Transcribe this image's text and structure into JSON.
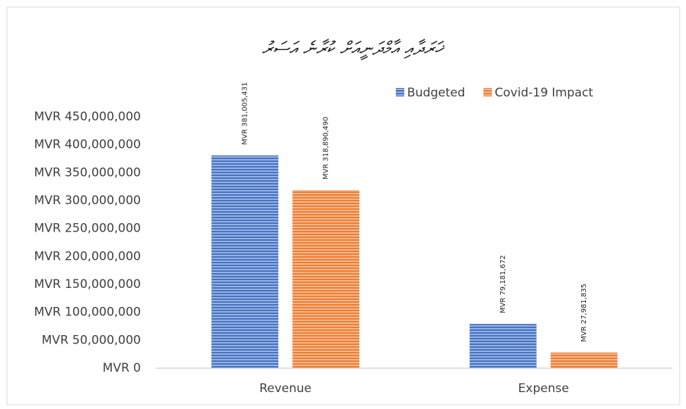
{
  "chart_data": {
    "type": "bar",
    "title": "ޚަރަދާއި އާމްދަނީއަށް ކުރާނެ އަސަރު",
    "categories": [
      "Revenue",
      "Expense"
    ],
    "series": [
      {
        "name": "Budgeted",
        "color": "#4472c4",
        "values": [
          381005431,
          79181672
        ],
        "value_labels": [
          "MVR 381,005,431",
          "MVR 79,181,672"
        ]
      },
      {
        "name": "Covid-19 Impact",
        "color": "#ed7d31",
        "values": [
          318890490,
          27981835
        ],
        "value_labels": [
          "MVR 318,890,490",
          "MVR 27,981,835"
        ]
      }
    ],
    "ylim": [
      0,
      450000000
    ],
    "yticks": [
      {
        "value": 0,
        "label": "MVR 0"
      },
      {
        "value": 50000000,
        "label": "MVR 50,000,000"
      },
      {
        "value": 100000000,
        "label": "MVR 100,000,000"
      },
      {
        "value": 150000000,
        "label": "MVR 150,000,000"
      },
      {
        "value": 200000000,
        "label": "MVR 200,000,000"
      },
      {
        "value": 250000000,
        "label": "MVR 250,000,000"
      },
      {
        "value": 300000000,
        "label": "MVR 300,000,000"
      },
      {
        "value": 350000000,
        "label": "MVR 350,000,000"
      },
      {
        "value": 400000000,
        "label": "MVR 400,000,000"
      },
      {
        "value": 450000000,
        "label": "MVR 450,000,000"
      }
    ],
    "grid": false,
    "legend": "top-right"
  }
}
